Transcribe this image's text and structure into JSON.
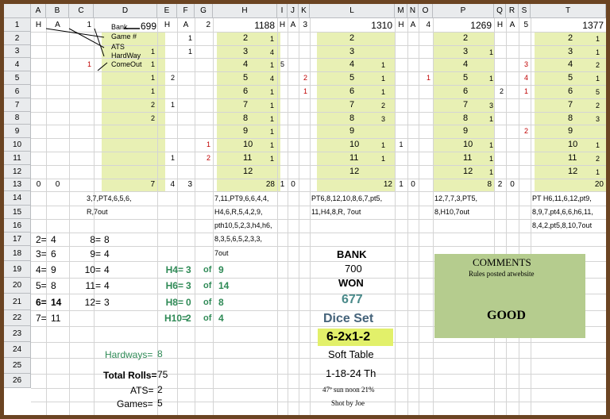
{
  "columns": [
    "A",
    "B",
    "C",
    "D",
    "E",
    "F",
    "G",
    "H",
    "I",
    "J",
    "K",
    "L",
    "M",
    "N",
    "O",
    "P",
    "Q",
    "R",
    "S",
    "T"
  ],
  "rows": [
    "1",
    "2",
    "3",
    "4",
    "5",
    "6",
    "7",
    "8",
    "9",
    "10",
    "11",
    "12",
    "13",
    "14",
    "15",
    "16",
    "17",
    "18",
    "19",
    "20",
    "21",
    "22",
    "23",
    "24",
    "25",
    "26"
  ],
  "legend": {
    "row1": [
      "H",
      "A",
      "1"
    ],
    "bank_label": "Bank",
    "bank_value": "699",
    "items": [
      "Game #",
      "ATS",
      "HardWay",
      "ComeOut"
    ]
  },
  "games": [
    {
      "label_h": "H",
      "label_a": "A",
      "game_no": "2",
      "bank": "1188",
      "points": [
        "2",
        "3",
        "4",
        "5",
        "6",
        "7",
        "8",
        "9",
        "10",
        "11",
        "12"
      ],
      "right_counts": [
        "1",
        "4",
        "1",
        "4",
        "1",
        "1",
        "1",
        "1",
        "1",
        "1",
        ""
      ],
      "h_counts": [
        "",
        "",
        "5",
        "",
        "",
        "",
        "",
        "",
        "",
        "",
        ""
      ],
      "a_counts": [
        "",
        "",
        "1",
        "",
        "",
        "",
        "",
        "",
        "",
        "",
        ""
      ],
      "total": "28",
      "sequence": [
        "7,11,PT9,6,6,4,4,",
        "H4,6,R,5,4,2,9,",
        "pth10,5,2,3,h4,h6,",
        "8,3,5,6,5,2,3,3,",
        "7out"
      ]
    }
  ],
  "col_d_values": [
    "",
    "1",
    "1",
    "1",
    "1",
    "2",
    "2",
    "",
    "",
    "",
    "",
    ""
  ],
  "col_e_values": [
    "",
    "",
    "",
    "2",
    "",
    "1",
    "",
    "",
    "",
    "1",
    "",
    ""
  ],
  "col_f_values": [
    "1",
    "1",
    "",
    "",
    "",
    "",
    "",
    "",
    "",
    "",
    "",
    ""
  ],
  "col_g_values": [
    "",
    "",
    "",
    "",
    "",
    "",
    "",
    "",
    "1",
    "2",
    "",
    ""
  ],
  "row3_c": "1",
  "row3_b_red": "1",
  "game3": {
    "bank": "1310",
    "points": [
      "2",
      "3",
      "4",
      "5",
      "6",
      "7",
      "8",
      "9",
      "10",
      "11",
      "12"
    ],
    "right_counts": [
      "",
      "",
      "1",
      "1",
      "1",
      "2",
      "3",
      "",
      "1",
      "1",
      ""
    ],
    "k_counts": [
      "",
      "",
      "",
      "2",
      "1",
      "",
      "",
      "",
      "",
      "",
      ""
    ],
    "m_counts": [
      "",
      "",
      "",
      "",
      "",
      "",
      "",
      "",
      "1",
      "",
      ""
    ],
    "total": "12",
    "sequence": [
      "PT6,8,12,10,8,6,7,pt5,",
      "11,H4,8,R, 7out"
    ]
  },
  "game4": {
    "bank": "1269",
    "points": [
      "2",
      "3",
      "4",
      "5",
      "6",
      "7",
      "8",
      "9",
      "10",
      "11",
      "12"
    ],
    "right_counts": [
      "",
      "1",
      "",
      "1",
      "",
      "3",
      "1",
      "",
      "1",
      "1",
      "1"
    ],
    "o_counts": [
      "",
      "",
      "",
      "1",
      "",
      "",
      "",
      "",
      "",
      "",
      ""
    ],
    "q_counts": [
      "",
      "",
      "",
      "",
      "2",
      "",
      "",
      "",
      "",
      "",
      ""
    ],
    "total": "8",
    "total_q": "2",
    "total_r": "0",
    "sequence": [
      "12,7,7,3,PT5,",
      "8,H10,7out"
    ]
  },
  "game5": {
    "bank": "1377",
    "points": [
      "2",
      "3",
      "4",
      "5",
      "6",
      "7",
      "8",
      "9",
      "10",
      "11",
      "12"
    ],
    "right_counts": [
      "1",
      "1",
      "2",
      "1",
      "5",
      "2",
      "3",
      "",
      "1",
      "2",
      "1"
    ],
    "s_counts": [
      "",
      "",
      "3",
      "4",
      "1",
      "",
      "",
      "2",
      "",
      "",
      ""
    ],
    "total": "20",
    "sequence": [
      "PT H6,11,6,12,pt9,",
      "8,9,7,pt4,6,6,h6,11,",
      "8,4,2,pt5,8,10,7out"
    ]
  },
  "row13": {
    "a": "0",
    "b": "0",
    "d": "7",
    "e": "4",
    "f": "3",
    "h": "28",
    "i": "1",
    "j": "0",
    "l": "12",
    "m": "1",
    "n": "0",
    "p": "8",
    "q": "2",
    "r": "0",
    "t": "20"
  },
  "row14_d": "3,7,PT4,6,5,6,",
  "row15_d": "R,7out",
  "labels": {
    "h4": "H4=",
    "h6": "H6=",
    "h8": "H8=",
    "h10": "H10=",
    "of": "of"
  },
  "roll_counts": [
    {
      "k": "2=",
      "v": "4"
    },
    {
      "k": "3=",
      "v": "6"
    },
    {
      "k": "4=",
      "v": "9"
    },
    {
      "k": "5=",
      "v": "8"
    },
    {
      "k": "6=",
      "v": "14"
    },
    {
      "k": "7=",
      "v": "11"
    }
  ],
  "roll_counts_right": [
    {
      "k": "8=",
      "v": "8"
    },
    {
      "k": "9=",
      "v": "4"
    },
    {
      "k": "10=",
      "v": "4"
    },
    {
      "k": "11=",
      "v": "4"
    },
    {
      "k": "12=",
      "v": "3"
    }
  ],
  "hardways_summary": [
    {
      "label": "H4=",
      "made": "3",
      "of": "9"
    },
    {
      "label": "H6=",
      "made": "3",
      "of": "14"
    },
    {
      "label": "H8=",
      "made": "0",
      "of": "8"
    },
    {
      "label": "H10=",
      "made": "2",
      "of": "4"
    }
  ],
  "hardways_label": "Hardways=",
  "hardways_value": "8",
  "totals": {
    "total_rolls_label": "Total Rolls=",
    "total_rolls": "75",
    "ats_label": "ATS=",
    "ats": "2",
    "games_label": "Games=",
    "games": "5"
  },
  "summary": {
    "bank_label": "BANK",
    "bank": "700",
    "won_label": "WON",
    "won": "677",
    "dice_set_label": "Dice Set",
    "dice_set": "6-2x1-2",
    "table": "Soft Table",
    "date": "1-18-24 Th",
    "weather": "47º sun noon 21%",
    "shooter": "Shot by Joe"
  },
  "comments": {
    "title": "COMMENTS",
    "subtitle": "Rules posted atwebsite",
    "body": "GOOD"
  },
  "colors": {
    "band": "#e8f0b4",
    "comments_bg": "#b5cc8e",
    "dice_set_bg": "#e2f06a",
    "accent_green": "#2f8a56"
  }
}
